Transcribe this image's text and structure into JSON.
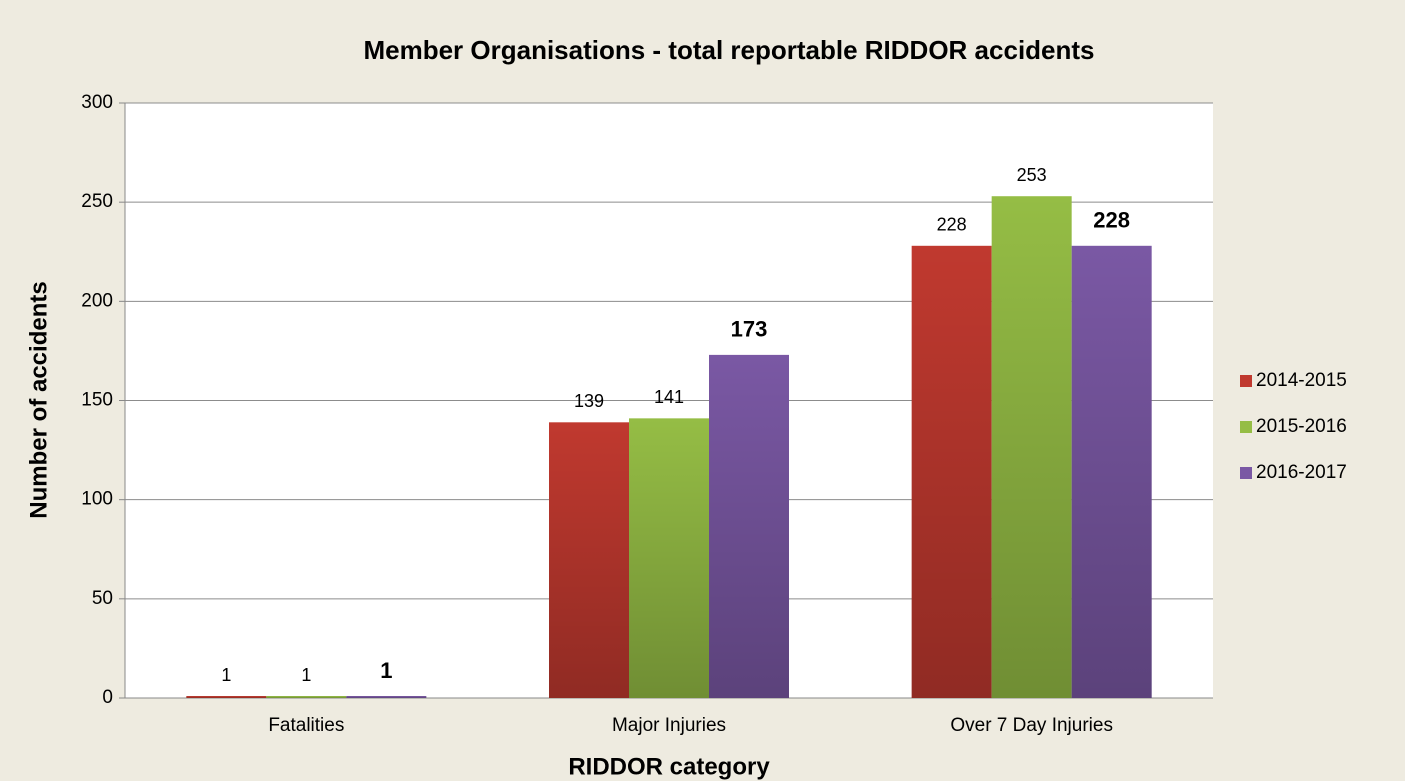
{
  "chart_data": {
    "type": "bar",
    "title": "Member Organisations - total reportable RIDDOR accidents",
    "x_label": "RIDDOR category",
    "y_label": "Number of accidents",
    "categories": [
      "Fatalities",
      "Major Injuries",
      "Over 7 Day Injuries"
    ],
    "series": [
      {
        "name": "2014-2015",
        "color": "#c0392f",
        "values": [
          1,
          139,
          228
        ]
      },
      {
        "name": "2015-2016",
        "color": "#95bd45",
        "values": [
          1,
          141,
          253
        ]
      },
      {
        "name": "2016-2017",
        "color": "#7a58a4",
        "values": [
          1,
          173,
          228
        ]
      }
    ],
    "ylim": [
      0,
      300
    ],
    "yticks": [
      0,
      50,
      100,
      150,
      200,
      250,
      300
    ],
    "grid": true,
    "legend": "right"
  }
}
